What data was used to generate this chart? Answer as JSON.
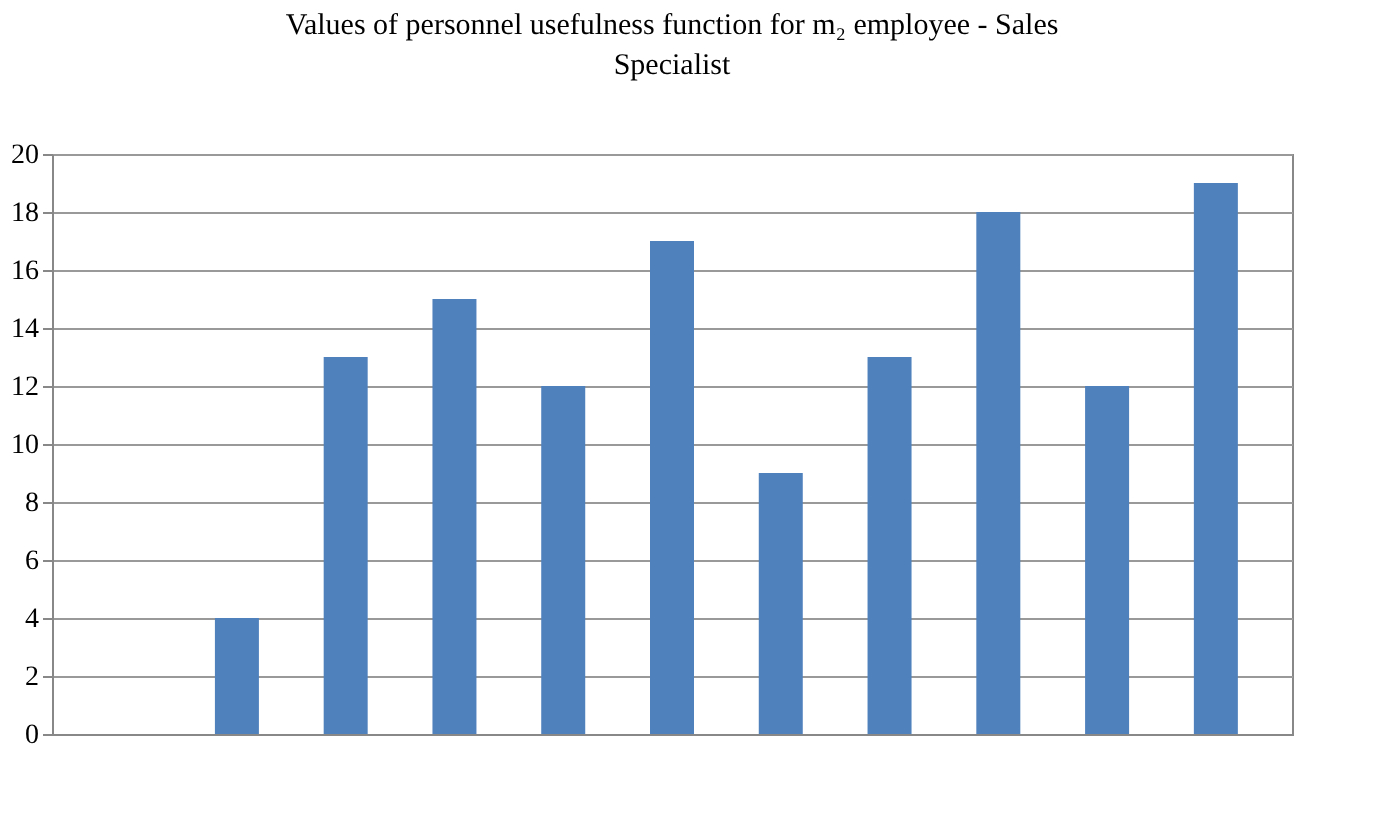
{
  "chart_data": {
    "type": "bar",
    "title": "Values of personnel usefulness function for m₂ employee - Sales Specialist",
    "categories": [
      null,
      null,
      null,
      null,
      null,
      null,
      null,
      null,
      null,
      null,
      null
    ],
    "values": [
      null,
      4,
      13,
      15,
      12,
      17,
      9,
      13,
      18,
      12,
      19
    ],
    "color": "#4f81bd",
    "ylim": [
      0,
      20
    ],
    "yticks": [
      0,
      2,
      4,
      6,
      8,
      10,
      12,
      14,
      16,
      18,
      20
    ],
    "grid": "y",
    "tick_labels": "y"
  }
}
